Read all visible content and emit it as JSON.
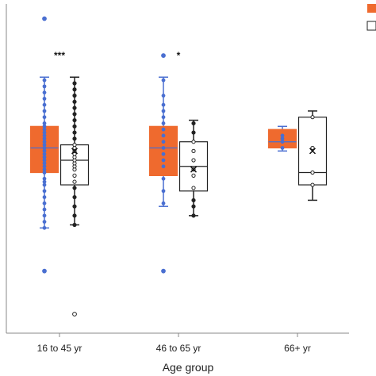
{
  "chart_data": {
    "type": "box",
    "xlabel": "Age group",
    "ylabel": "",
    "title": "",
    "categories": [
      "16 to 45 yr",
      "46 to 65 yr",
      "66+ yr"
    ],
    "ylim": [
      0,
      100
    ],
    "grid": false,
    "legend_position": "top-right",
    "significance": [
      "***",
      "*",
      ""
    ],
    "series": [
      {
        "fill": "#ef6a2e",
        "whisker_color": "#4a6fd1",
        "point_color": "#4a6fd1",
        "boxes": [
          {
            "min": 28,
            "q1": 46,
            "median": 54,
            "q3": 61,
            "max": 77,
            "outliers": [
              96,
              14
            ],
            "points": [
              28,
              30,
              32,
              34,
              36,
              38,
              40,
              42,
              43,
              44,
              46,
              47,
              48,
              49,
              50,
              51,
              52,
              53,
              54,
              54,
              55,
              56,
              57,
              58,
              59,
              60,
              61,
              62,
              64,
              66,
              68,
              70,
              72,
              74,
              76
            ]
          },
          {
            "min": 35,
            "q1": 45,
            "median": 54,
            "q3": 61,
            "max": 77,
            "outliers": [
              14,
              84
            ],
            "points": [
              36,
              40,
              44,
              48,
              50,
              52,
              54,
              56,
              58,
              60,
              62,
              64,
              66,
              68,
              71,
              76
            ]
          },
          {
            "min": 53,
            "q1": 54,
            "median": 56,
            "q3": 60,
            "max": 61,
            "outliers": [],
            "points": [
              54,
              56,
              57,
              58
            ]
          }
        ]
      },
      {
        "fill": "#ffffff",
        "whisker_color": "#222222",
        "point_color": "#222222",
        "boxes": [
          {
            "min": 29,
            "q1": 42,
            "median": 50,
            "q3": 55,
            "max": 77,
            "mean": 53,
            "outliers": [
              0
            ],
            "points": [
              29,
              32,
              35,
              38,
              41,
              43,
              45,
              47,
              48,
              49,
              50,
              51,
              52,
              53,
              54,
              55,
              57,
              59,
              61,
              63,
              65,
              67,
              69,
              71,
              73,
              75
            ]
          },
          {
            "min": 32,
            "q1": 40,
            "median": 48,
            "q3": 56,
            "max": 63,
            "mean": 47,
            "outliers": [],
            "points": [
              32,
              35,
              37,
              41,
              45,
              47,
              50,
              53,
              56,
              59,
              62
            ]
          },
          {
            "min": 37,
            "q1": 42,
            "median": 46,
            "q3": 64,
            "max": 66,
            "mean": 53,
            "outliers": [],
            "points": [
              42,
              46,
              54,
              64
            ]
          }
        ]
      }
    ]
  }
}
